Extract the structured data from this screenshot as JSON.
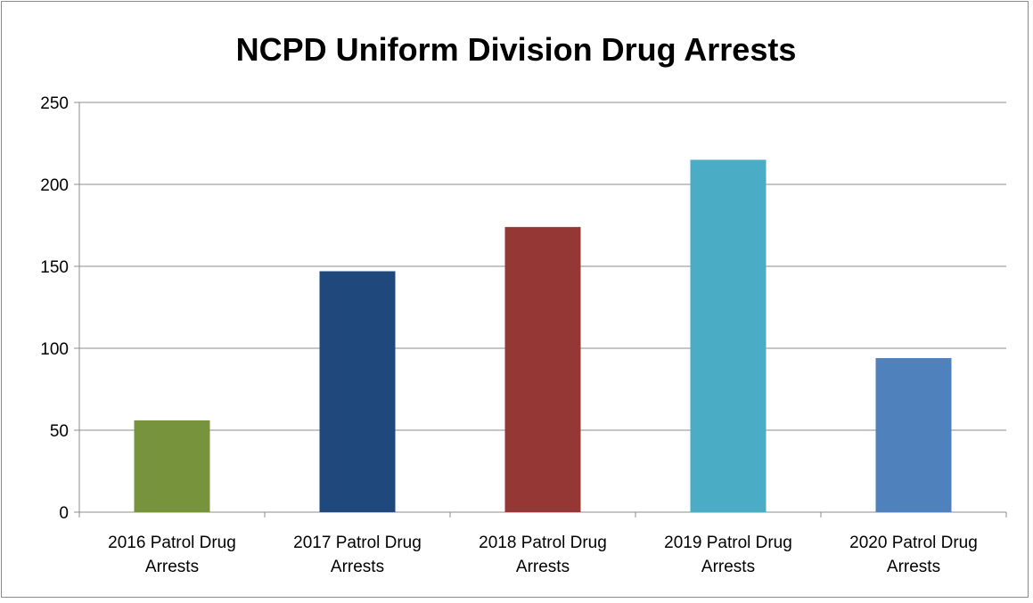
{
  "chart_data": {
    "type": "bar",
    "title": "NCPD Uniform Division Drug Arrests",
    "xlabel": "",
    "ylabel": "",
    "ylim": [
      0,
      250
    ],
    "yticks": [
      0,
      50,
      100,
      150,
      200,
      250
    ],
    "grid": true,
    "legend": "none",
    "categories": [
      [
        "2016 Patrol Drug",
        "Arrests"
      ],
      [
        "2017 Patrol Drug",
        "Arrests"
      ],
      [
        "2018 Patrol Drug",
        "Arrests"
      ],
      [
        "2019 Patrol Drug",
        "Arrests"
      ],
      [
        "2020 Patrol Drug",
        "Arrests"
      ]
    ],
    "values": [
      56,
      147,
      174,
      215,
      94
    ],
    "colors": [
      "#77933c",
      "#1f497d",
      "#953735",
      "#4bacc6",
      "#4f81bd"
    ]
  }
}
